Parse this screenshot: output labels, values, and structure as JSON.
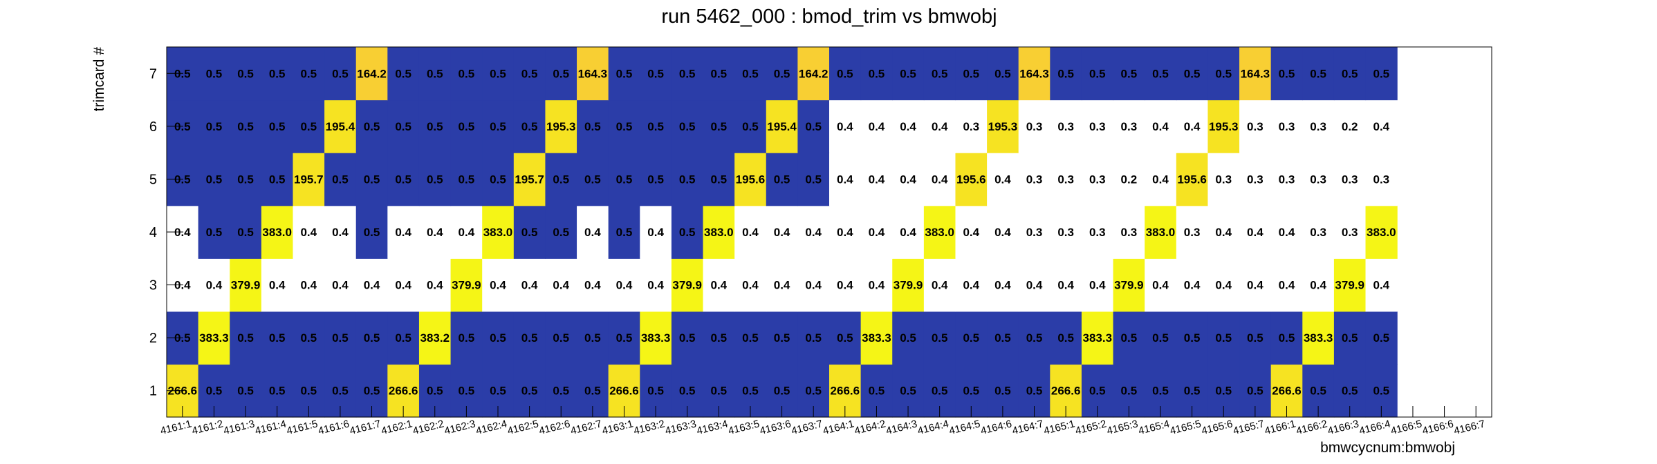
{
  "chart_data": {
    "type": "heatmap",
    "title": "run 5462_000 : bmod_trim vs bmwobj",
    "xlabel": "bmwcycnum:bmwobj",
    "ylabel": "trimcard #",
    "x_categories": [
      "4161:1",
      "4161:2",
      "4161:3",
      "4161:4",
      "4161:5",
      "4161:6",
      "4161:7",
      "4162:1",
      "4162:2",
      "4162:3",
      "4162:4",
      "4162:5",
      "4162:6",
      "4162:7",
      "4163:1",
      "4163:2",
      "4163:3",
      "4163:4",
      "4163:5",
      "4163:6",
      "4163:7",
      "4164:1",
      "4164:2",
      "4164:3",
      "4164:4",
      "4164:5",
      "4164:6",
      "4164:7",
      "4165:1",
      "4165:2",
      "4165:3",
      "4165:4",
      "4165:5",
      "4165:6",
      "4165:7",
      "4166:1",
      "4166:2",
      "4166:3",
      "4166:4",
      "4166:5",
      "4166:6",
      "4166:7"
    ],
    "y_categories": [
      "1",
      "2",
      "3",
      "4",
      "5",
      "6",
      "7"
    ],
    "values": [
      [
        "266.6",
        "0.5",
        "0.5",
        "0.5",
        "0.5",
        "0.5",
        "0.5",
        "266.6",
        "0.5",
        "0.5",
        "0.5",
        "0.5",
        "0.5",
        "0.5",
        "266.6",
        "0.5",
        "0.5",
        "0.5",
        "0.5",
        "0.5",
        "0.5",
        "266.6",
        "0.5",
        "0.5",
        "0.5",
        "0.5",
        "0.5",
        "0.5",
        "266.6",
        "0.5",
        "0.5",
        "0.5",
        "0.5",
        "0.5",
        "0.5",
        "266.6",
        "0.5",
        "0.5",
        "0.5",
        null,
        null,
        null
      ],
      [
        "0.5",
        "383.3",
        "0.5",
        "0.5",
        "0.5",
        "0.5",
        "0.5",
        "0.5",
        "383.2",
        "0.5",
        "0.5",
        "0.5",
        "0.5",
        "0.5",
        "0.5",
        "383.3",
        "0.5",
        "0.5",
        "0.5",
        "0.5",
        "0.5",
        "0.5",
        "383.3",
        "0.5",
        "0.5",
        "0.5",
        "0.5",
        "0.5",
        "0.5",
        "383.3",
        "0.5",
        "0.5",
        "0.5",
        "0.5",
        "0.5",
        "0.5",
        "383.3",
        "0.5",
        "0.5",
        null,
        null,
        null
      ],
      [
        "0.4",
        "0.4",
        "379.9",
        "0.4",
        "0.4",
        "0.4",
        "0.4",
        "0.4",
        "0.4",
        "379.9",
        "0.4",
        "0.4",
        "0.4",
        "0.4",
        "0.4",
        "0.4",
        "379.9",
        "0.4",
        "0.4",
        "0.4",
        "0.4",
        "0.4",
        "0.4",
        "379.9",
        "0.4",
        "0.4",
        "0.4",
        "0.4",
        "0.4",
        "0.4",
        "379.9",
        "0.4",
        "0.4",
        "0.4",
        "0.4",
        "0.4",
        "0.4",
        "379.9",
        "0.4",
        null,
        null,
        null
      ],
      [
        "0.4",
        "0.5",
        "0.5",
        "383.0",
        "0.4",
        "0.4",
        "0.5",
        "0.4",
        "0.4",
        "0.4",
        "383.0",
        "0.5",
        "0.5",
        "0.4",
        "0.5",
        "0.4",
        "0.5",
        "383.0",
        "0.4",
        "0.4",
        "0.4",
        "0.4",
        "0.4",
        "0.4",
        "383.0",
        "0.4",
        "0.4",
        "0.3",
        "0.3",
        "0.3",
        "0.3",
        "383.0",
        "0.3",
        "0.4",
        "0.4",
        "0.4",
        "0.3",
        "0.3",
        "383.0",
        null,
        null,
        null
      ],
      [
        "0.5",
        "0.5",
        "0.5",
        "0.5",
        "195.7",
        "0.5",
        "0.5",
        "0.5",
        "0.5",
        "0.5",
        "0.5",
        "195.7",
        "0.5",
        "0.5",
        "0.5",
        "0.5",
        "0.5",
        "0.5",
        "195.6",
        "0.5",
        "0.5",
        "0.4",
        "0.4",
        "0.4",
        "0.4",
        "195.6",
        "0.4",
        "0.3",
        "0.3",
        "0.3",
        "0.2",
        "0.4",
        "195.6",
        "0.3",
        "0.3",
        "0.3",
        "0.3",
        "0.3",
        "0.3",
        null,
        null,
        null
      ],
      [
        "0.5",
        "0.5",
        "0.5",
        "0.5",
        "0.5",
        "195.4",
        "0.5",
        "0.5",
        "0.5",
        "0.5",
        "0.5",
        "0.5",
        "195.3",
        "0.5",
        "0.5",
        "0.5",
        "0.5",
        "0.5",
        "0.5",
        "195.4",
        "0.5",
        "0.4",
        "0.4",
        "0.4",
        "0.4",
        "0.3",
        "195.3",
        "0.3",
        "0.3",
        "0.3",
        "0.3",
        "0.4",
        "0.4",
        "195.3",
        "0.3",
        "0.3",
        "0.3",
        "0.2",
        "0.4",
        null,
        null,
        null
      ],
      [
        "0.5",
        "0.5",
        "0.5",
        "0.5",
        "0.5",
        "0.5",
        "164.2",
        "0.5",
        "0.5",
        "0.5",
        "0.5",
        "0.5",
        "0.5",
        "164.3",
        "0.5",
        "0.5",
        "0.5",
        "0.5",
        "0.5",
        "0.5",
        "164.2",
        "0.5",
        "0.5",
        "0.5",
        "0.5",
        "0.5",
        "0.5",
        "164.3",
        "0.5",
        "0.5",
        "0.5",
        "0.5",
        "0.5",
        "0.5",
        "164.3",
        "0.5",
        "0.5",
        "0.5",
        "0.5",
        null,
        null,
        null
      ]
    ],
    "colors": {
      "low": "#2b3da8",
      "empty_band": "#ffffff",
      "band_380": "#f5f516",
      "band_195": "#f6e322",
      "band_164": "#f8cf33",
      "frame": "#000000"
    }
  }
}
